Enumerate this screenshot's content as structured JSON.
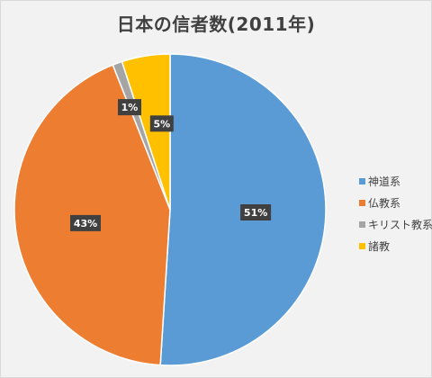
{
  "chart_data": {
    "type": "pie",
    "title": "日本の信者数(2011年)",
    "categories": [
      "神道系",
      "仏教系",
      "キリスト教系",
      "諸教"
    ],
    "values": [
      51,
      43,
      1,
      5
    ],
    "data_labels": [
      "51%",
      "43%",
      "1%",
      "5%"
    ],
    "colors": [
      "#5B9BD5",
      "#ED7D31",
      "#A5A5A5",
      "#FFC000"
    ],
    "start_angle": "12 o'clock",
    "direction": "clockwise",
    "legend_position": "right"
  },
  "colors": {
    "background": "#F2F2F2",
    "label_box": "#404040",
    "label_text": "#FFFFFF",
    "title_text": "#404040"
  }
}
